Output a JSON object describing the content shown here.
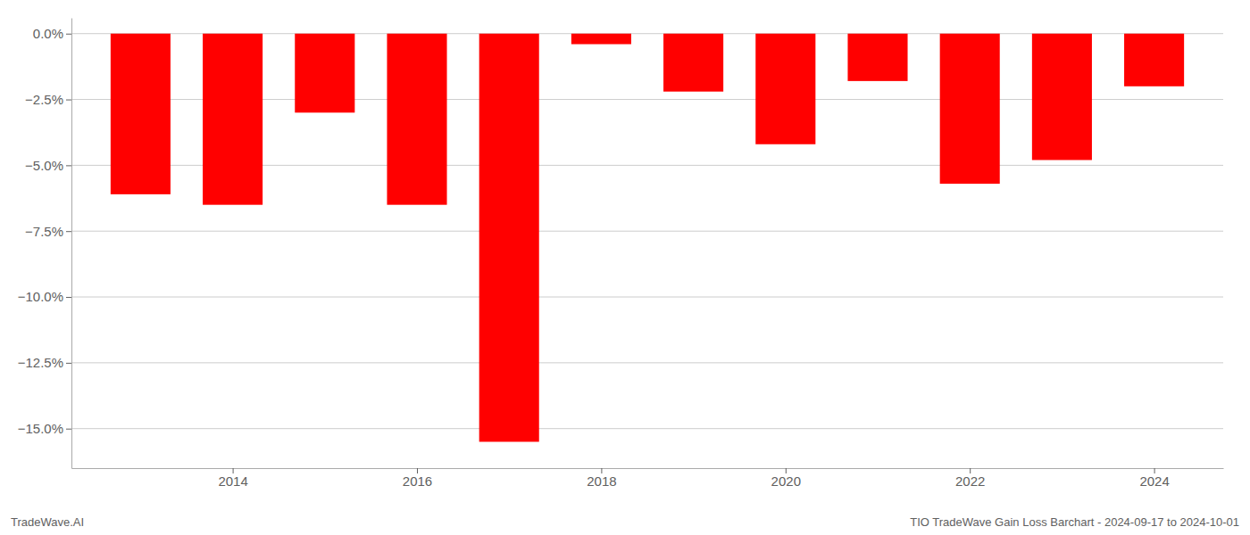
{
  "chart_data": {
    "type": "bar",
    "x": [
      2013,
      2014,
      2015,
      2016,
      2017,
      2018,
      2019,
      2020,
      2021,
      2022,
      2023,
      2024
    ],
    "values": [
      -6.1,
      -6.5,
      -3.0,
      -6.5,
      -15.5,
      -0.4,
      -2.2,
      -4.2,
      -1.8,
      -5.7,
      -4.8,
      -2.0
    ],
    "color": "#ff0000",
    "xlim": [
      2012.25,
      2024.75
    ],
    "xticks": [
      2014,
      2016,
      2018,
      2020,
      2022,
      2024
    ],
    "ylim": [
      -16.5,
      0.6
    ],
    "yticks": [
      {
        "value": 0.0,
        "label": "0.0%"
      },
      {
        "value": -2.5,
        "label": "−2.5%"
      },
      {
        "value": -5.0,
        "label": "−5.0%"
      },
      {
        "value": -7.5,
        "label": "−7.5%"
      },
      {
        "value": -10.0,
        "label": "−10.0%"
      },
      {
        "value": -12.5,
        "label": "−12.5%"
      },
      {
        "value": -15.0,
        "label": "−15.0%"
      }
    ],
    "grid": true,
    "annotations": [
      "TradeWave.AI",
      "TIO TradeWave Gain Loss Barchart - 2024-09-17 to 2024-10-01"
    ]
  }
}
